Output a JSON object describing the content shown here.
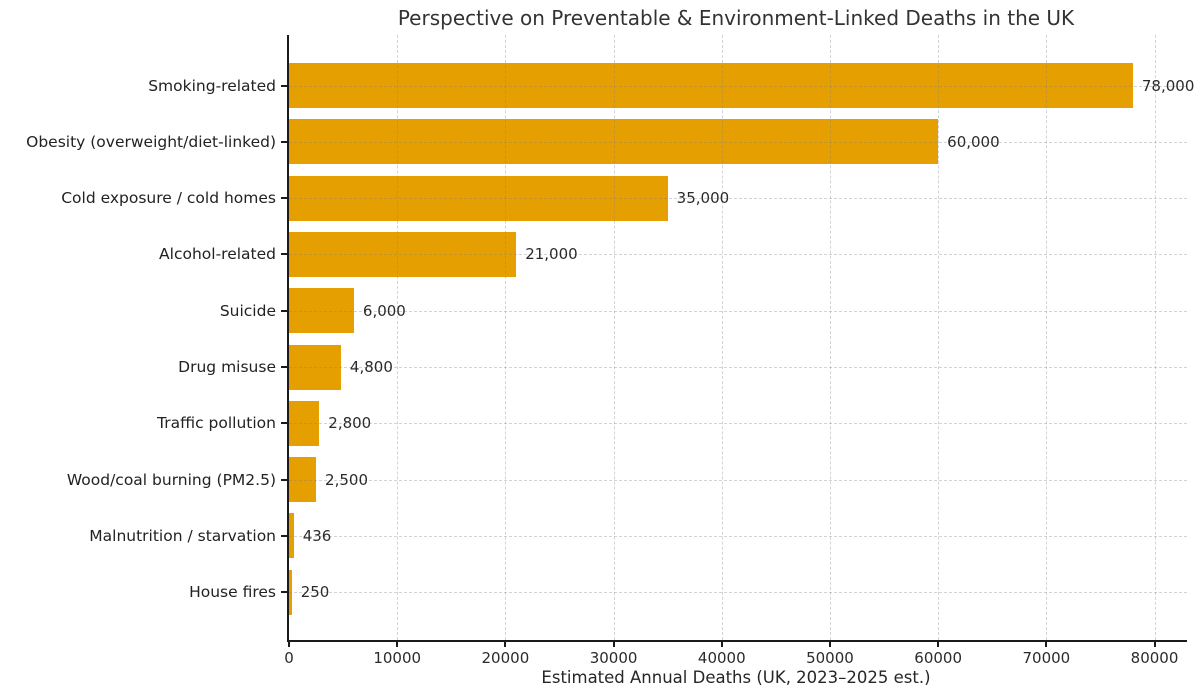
{
  "chart_data": {
    "type": "bar",
    "orientation": "horizontal",
    "title": "Perspective on Preventable & Environment-Linked Deaths in the UK",
    "xlabel": "Estimated Annual Deaths (UK, 2023–2025 est.)",
    "ylabel": "",
    "categories": [
      "Smoking-related",
      "Obesity (overweight/diet-linked)",
      "Cold exposure / cold homes",
      "Alcohol-related",
      "Suicide",
      "Drug misuse",
      "Traffic pollution",
      "Wood/coal burning (PM2.5)",
      "Malnutrition / starvation",
      "House fires"
    ],
    "values": [
      78000,
      60000,
      35000,
      21000,
      6000,
      4800,
      2800,
      2500,
      436,
      250
    ],
    "value_labels": [
      "78,000",
      "60,000",
      "35,000",
      "21,000",
      "6,000",
      "4,800",
      "2,800",
      "2,500",
      "436",
      "250"
    ],
    "xticks": [
      0,
      10000,
      20000,
      30000,
      40000,
      50000,
      60000,
      70000,
      80000
    ],
    "xtick_labels": [
      "0",
      "10000",
      "20000",
      "30000",
      "40000",
      "50000",
      "60000",
      "70000",
      "80000"
    ],
    "xlim": [
      0,
      83000
    ],
    "grid": "dashed-both-axes",
    "legend_position": "none",
    "bar_color": "#E69F00"
  },
  "colors": {
    "bar": "#E69F00",
    "background": "#ffffff",
    "grid": "rgba(128,128,128,0.35)",
    "axis": "#1a1a1a",
    "text": "#262626",
    "title": "#333333"
  }
}
